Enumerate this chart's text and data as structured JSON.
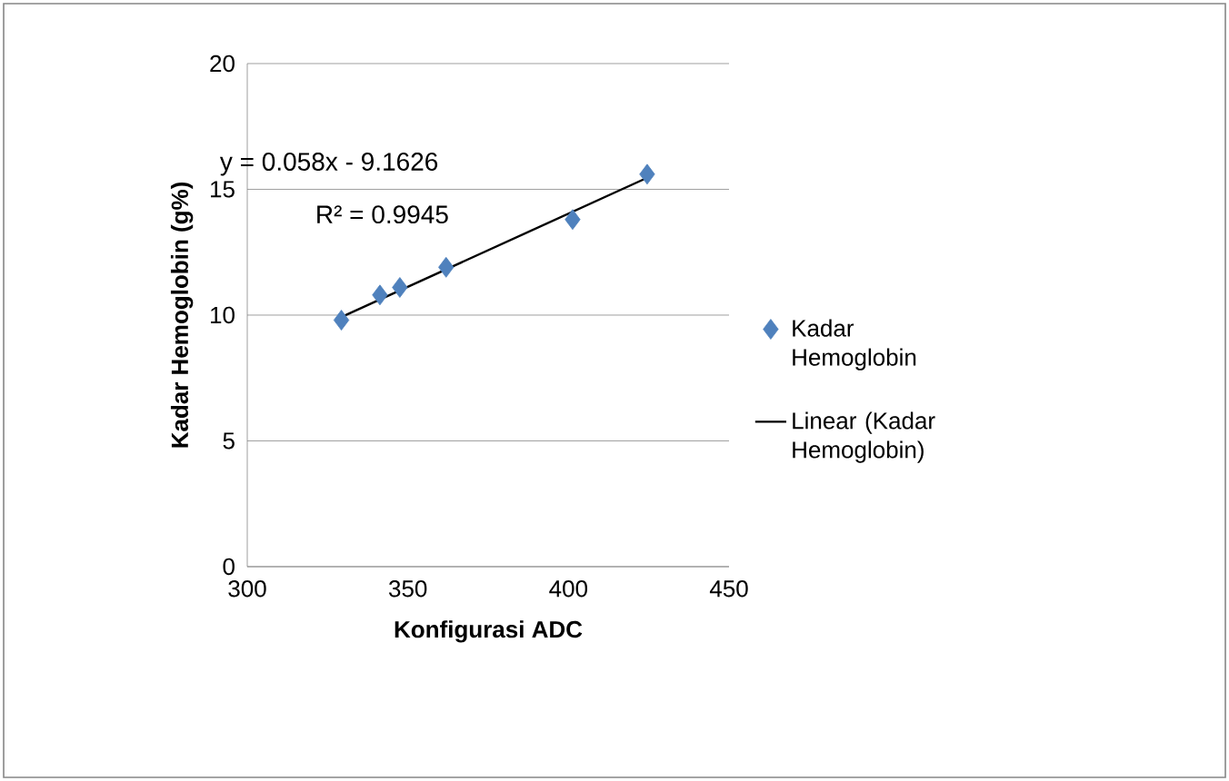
{
  "chart_data": {
    "type": "scatter",
    "xlabel": "Konfigurasi ADC",
    "ylabel": "Kadar Hemoglobin (g%)",
    "xlim": [
      300,
      450
    ],
    "xticks": [
      300,
      350,
      400,
      450
    ],
    "ylim": [
      0,
      20
    ],
    "yticks": [
      0,
      5,
      10,
      15,
      20
    ],
    "grid": "y",
    "legend": "right",
    "series": [
      {
        "name": "Kadar Hemoglobin",
        "marker": "diamond",
        "color": "#4f81bd",
        "x": [
          329.3,
          341.3,
          347.5,
          361.9,
          401.3,
          424.5
        ],
        "values": [
          9.8,
          10.8,
          11.1,
          11.9,
          13.8,
          15.6
        ]
      },
      {
        "name": "Linear (Kadar Hemoglobin)",
        "type": "line",
        "marker": "none",
        "line_style": "solid",
        "color": "#000000",
        "x": [
          329.3,
          424.5
        ],
        "values": [
          9.92,
          15.46
        ]
      }
    ],
    "annotations": [
      "y = 0.058x - 9.1626",
      "R² = 0.9945"
    ]
  }
}
